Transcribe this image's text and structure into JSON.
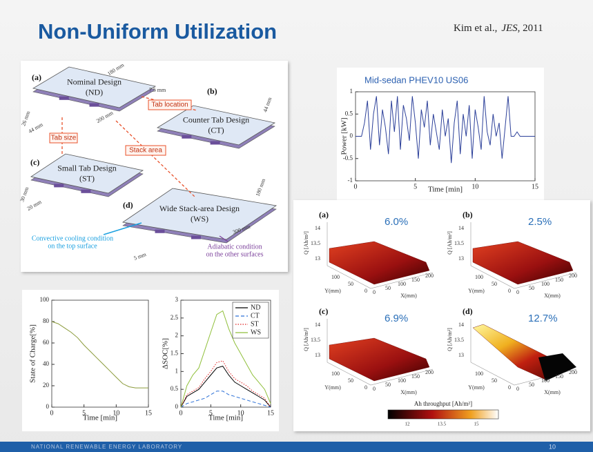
{
  "header": {
    "title": "Non-Uniform Utilization",
    "citation": {
      "authors": "Kim et al.,",
      "journal": "JES",
      "year": ", 2011"
    }
  },
  "diagram": {
    "plates": [
      {
        "tag": "(a)",
        "name": "Nominal Design",
        "abbr": "(ND)"
      },
      {
        "tag": "(b)",
        "name": "Counter Tab Design",
        "abbr": "(CT)"
      },
      {
        "tag": "(c)",
        "name": "Small Tab Design",
        "abbr": "(ST)"
      },
      {
        "tag": "(d)",
        "name": "Wide Stack-area Design",
        "abbr": "(WS)"
      }
    ],
    "callouts": [
      "Tab location",
      "Tab size",
      "Stack area"
    ],
    "dimensions": [
      "180 mm",
      "7.5 mm",
      "200 mm",
      "26 mm",
      "44 mm",
      "44 mm",
      "30 mm",
      "20 mm",
      "180 mm",
      "300 mm",
      "5 mm"
    ],
    "notes": {
      "convective": [
        "Convective cooling condition",
        "on the top surface"
      ],
      "adiabatic": [
        "Adiabatic condition",
        "on the other surfaces"
      ]
    }
  },
  "chart_data": [
    {
      "type": "line",
      "title": "Mid-sedan PHEV10 US06",
      "x_label": "Time [min]",
      "y_label": "Power [kW]",
      "x": [
        0,
        0.25,
        0.5,
        0.75,
        1,
        1.25,
        1.5,
        1.75,
        2,
        2.25,
        2.5,
        2.75,
        3,
        3.25,
        3.5,
        3.75,
        4,
        4.25,
        4.5,
        4.75,
        5,
        5.25,
        5.5,
        5.75,
        6,
        6.25,
        6.5,
        6.75,
        7,
        7.25,
        7.5,
        7.75,
        8,
        8.25,
        8.5,
        8.75,
        9,
        9.25,
        9.5,
        9.75,
        10,
        10.25,
        10.5,
        10.75,
        11,
        11.25,
        11.5,
        11.75,
        12,
        12.25,
        12.5,
        12.75,
        13,
        13.25,
        13.5,
        13.75,
        14,
        14.25,
        14.5,
        14.75,
        15
      ],
      "series": [
        {
          "color": "#2b3f99",
          "values": [
            0,
            0,
            0,
            0.3,
            0.8,
            -0.3,
            0.5,
            0.9,
            -0.2,
            0.6,
            0.2,
            -0.4,
            0.8,
            0.1,
            0.9,
            -0.3,
            0.7,
            0.4,
            -0.1,
            0.9,
            0.3,
            -0.5,
            0.6,
            0.2,
            0.8,
            -0.2,
            0.5,
            0.1,
            -0.3,
            0.6,
            0,
            0.4,
            -0.6,
            0.3,
            0.8,
            -0.4,
            0.5,
            0,
            0.7,
            -0.5,
            0.6,
            0.2,
            -0.3,
            0.9,
            0.1,
            -0.2,
            0.5,
            0,
            0.3,
            -0.5,
            0.2,
            0.9,
            0,
            0,
            0.1,
            0,
            0,
            0,
            0,
            0,
            0
          ]
        }
      ],
      "xlim": [
        0,
        15
      ],
      "xticks": [
        0,
        5,
        10,
        15
      ],
      "ylim": [
        -1,
        1
      ],
      "yticks": [
        -1,
        -0.5,
        0,
        0.5,
        1
      ]
    },
    {
      "type": "line",
      "x_label": "Time [min]",
      "y_label": "State of Charge[%]",
      "x": [
        0,
        1,
        2,
        3,
        4,
        5,
        6,
        7,
        8,
        9,
        10,
        11,
        12,
        13,
        14,
        15
      ],
      "series": [
        {
          "color": "#8a9a3a",
          "values": [
            80,
            78,
            74,
            70,
            65,
            58,
            52,
            46,
            40,
            34,
            28,
            22,
            19,
            18,
            18,
            18
          ]
        }
      ],
      "xlim": [
        0,
        15
      ],
      "xticks": [
        0,
        5,
        10,
        15
      ],
      "ylim": [
        0,
        100
      ],
      "yticks": [
        0,
        20,
        40,
        60,
        80,
        100
      ]
    },
    {
      "type": "line",
      "x_label": "Time [min]",
      "y_label": "ΔSOC[%]",
      "legend": "upper right",
      "x": [
        0,
        1,
        2,
        3,
        4,
        5,
        6,
        7,
        8,
        9,
        10,
        11,
        12,
        13,
        14,
        15
      ],
      "series": [
        {
          "name": "ND",
          "color": "#000000",
          "dash": "solid",
          "values": [
            0,
            0.3,
            0.4,
            0.5,
            0.7,
            0.9,
            1.1,
            1.15,
            0.9,
            0.7,
            0.6,
            0.5,
            0.4,
            0.3,
            0.2,
            0
          ]
        },
        {
          "name": "CT",
          "color": "#2a6fd6",
          "dash": "dashed",
          "values": [
            0,
            0.1,
            0.15,
            0.2,
            0.25,
            0.35,
            0.45,
            0.45,
            0.35,
            0.3,
            0.25,
            0.2,
            0.15,
            0.1,
            0.05,
            0
          ]
        },
        {
          "name": "ST",
          "color": "#e02020",
          "dash": "dotted",
          "values": [
            0,
            0.35,
            0.45,
            0.55,
            0.8,
            1.0,
            1.25,
            1.3,
            1.0,
            0.8,
            0.7,
            0.6,
            0.45,
            0.35,
            0.25,
            0
          ]
        },
        {
          "name": "WS",
          "color": "#8fbf3a",
          "dash": "solid",
          "values": [
            0,
            0.6,
            0.9,
            1.1,
            1.6,
            2.1,
            2.6,
            2.7,
            2.2,
            1.8,
            1.5,
            1.2,
            0.9,
            0.7,
            0.5,
            0.1
          ]
        }
      ],
      "xlim": [
        0,
        15
      ],
      "xticks": [
        0,
        5,
        10,
        15
      ],
      "ylim": [
        0,
        3
      ],
      "yticks": [
        0,
        0.5,
        1,
        1.5,
        2,
        2.5,
        3
      ]
    }
  ],
  "surfaces": {
    "z_label": "Q [Ah/m²]",
    "x_label": "X(mm)",
    "y_label": "Y(mm)",
    "zticks": [
      "13",
      "13.5",
      "14"
    ],
    "xticks": [
      "0",
      "50",
      "100",
      "150",
      "200"
    ],
    "yticks": [
      "0",
      "50",
      "100"
    ],
    "panels": [
      {
        "tag": "(a)",
        "percent": "6.0%"
      },
      {
        "tag": "(b)",
        "percent": "2.5%"
      },
      {
        "tag": "(c)",
        "percent": "6.9%"
      },
      {
        "tag": "(d)",
        "percent": "12.7%"
      }
    ],
    "colorbar": {
      "title": "Ah throughput [Ah/m²]",
      "ticks": [
        "12",
        "13.5",
        "15"
      ]
    }
  },
  "footer": {
    "organization": "NATIONAL RENEWABLE ENERGY LABORATORY",
    "page": "10"
  }
}
